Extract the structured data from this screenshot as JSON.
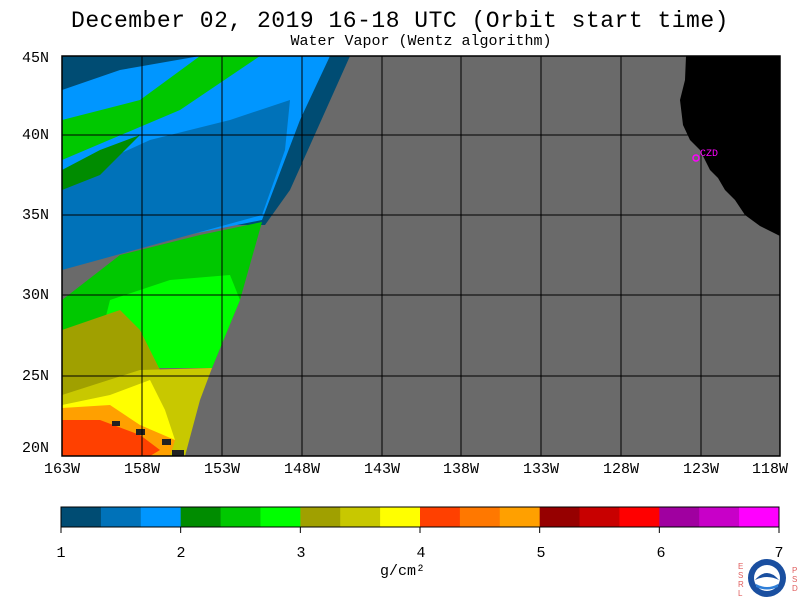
{
  "title": "December 02, 2019  16-18 UTC  (Orbit start time)",
  "subtitle": "Water Vapor (Wentz algorithm)",
  "map": {
    "lat_labels": [
      "45N",
      "40N",
      "35N",
      "30N",
      "25N",
      "20N"
    ],
    "lon_labels": [
      "163W",
      "158W",
      "153W",
      "148W",
      "143W",
      "138W",
      "133W",
      "128W",
      "123W",
      "118W"
    ],
    "station_label": "CZD",
    "colors": {
      "no_data": "#6a6a6a",
      "land": "#000000",
      "station": "#ff00ff"
    }
  },
  "colorbar": {
    "ticks": [
      "1",
      "2",
      "3",
      "4",
      "5",
      "6",
      "7"
    ],
    "units": "g/cm²",
    "colors": [
      "#004c73",
      "#0072b9",
      "#0096ff",
      "#008c00",
      "#00c800",
      "#00ff00",
      "#a0a000",
      "#c8c800",
      "#ffff00",
      "#ff4000",
      "#ff7800",
      "#ffa000",
      "#960000",
      "#c80000",
      "#ff0000",
      "#a000a0",
      "#c800c8",
      "#ff00ff"
    ]
  },
  "logo": {
    "left_letters": [
      "E",
      "S",
      "R",
      "L"
    ],
    "right_letters": [
      "P",
      "S",
      "D"
    ],
    "text": "NOAA"
  }
}
